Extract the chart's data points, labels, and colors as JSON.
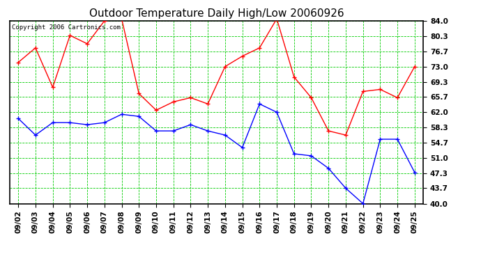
{
  "title": "Outdoor Temperature Daily High/Low 20060926",
  "copyright": "Copyright 2006 Cartronics.com",
  "dates": [
    "09/02",
    "09/03",
    "09/04",
    "09/05",
    "09/06",
    "09/07",
    "09/08",
    "09/09",
    "09/10",
    "09/11",
    "09/12",
    "09/13",
    "09/14",
    "09/15",
    "09/16",
    "09/17",
    "09/18",
    "09/19",
    "09/20",
    "09/21",
    "09/22",
    "09/23",
    "09/24",
    "09/25"
  ],
  "high": [
    74.0,
    77.5,
    68.0,
    80.5,
    78.5,
    84.0,
    84.5,
    66.5,
    62.5,
    64.5,
    65.5,
    64.0,
    73.0,
    75.5,
    77.5,
    84.5,
    70.5,
    65.5,
    57.5,
    56.5,
    67.0,
    67.5,
    65.5,
    73.0
  ],
  "low": [
    60.5,
    56.5,
    59.5,
    59.5,
    59.0,
    59.5,
    61.5,
    61.0,
    57.5,
    57.5,
    59.0,
    57.5,
    56.5,
    53.5,
    64.0,
    62.0,
    52.0,
    51.5,
    48.5,
    43.7,
    40.0,
    55.5,
    55.5,
    47.5
  ],
  "high_color": "#ff0000",
  "low_color": "#0000ff",
  "bg_color": "#ffffff",
  "plot_bg_color": "#ffffff",
  "grid_color": "#00cc00",
  "ylim": [
    40.0,
    84.0
  ],
  "yticks": [
    40.0,
    43.7,
    47.3,
    51.0,
    54.7,
    58.3,
    62.0,
    65.7,
    69.3,
    73.0,
    76.7,
    80.3,
    84.0
  ],
  "title_fontsize": 11,
  "copyright_fontsize": 6.5,
  "tick_fontsize": 7.5
}
